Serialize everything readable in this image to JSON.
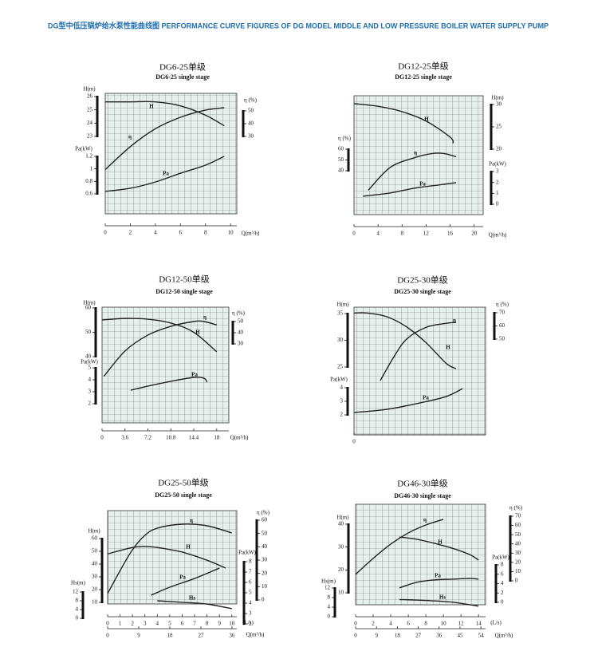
{
  "header": {
    "title": "DG型中低压锅炉给水泵性能曲线图  PERFORMANCE CURVE FIGURES OF DG MODEL MIDDLE AND LOW PRESSURE BOILER WATER SUPPLY PUMP"
  },
  "chart_data": [
    {
      "type": "line",
      "title": "DG6-25单级",
      "subtitle": "DG6-25 single stage",
      "color": "#222222",
      "xlabel": "Q(m³/h)",
      "xlim": [
        0,
        10.5
      ],
      "xticks": [
        0,
        2,
        4,
        6,
        8,
        10
      ],
      "axes": [
        {
          "label": "H(m)",
          "lim": [
            23,
            26
          ],
          "ticks": [
            26,
            25,
            24,
            23
          ],
          "name": "H",
          "x": [
            0,
            2,
            4,
            6,
            8,
            9.5
          ],
          "values": [
            25.6,
            25.6,
            25.6,
            25.3,
            24.6,
            23.8
          ]
        },
        {
          "label": "Pa(kW)",
          "lim": [
            0.6,
            1.2
          ],
          "ticks": [
            1.2,
            1,
            0.8,
            0.6
          ],
          "name": "Pa",
          "x": [
            0,
            2,
            4,
            6,
            8,
            9.5
          ],
          "values": [
            0.64,
            0.69,
            0.79,
            0.93,
            1.06,
            1.2
          ]
        },
        {
          "label": "η (%)",
          "lim": [
            30,
            50
          ],
          "ticks": [
            50,
            40,
            30
          ],
          "name": "η",
          "x": [
            0,
            2,
            4,
            6,
            8,
            9.5
          ],
          "values": [
            4,
            22,
            36,
            45,
            50.6,
            52.5
          ]
        }
      ]
    },
    {
      "type": "line",
      "title": "DG12-25单级",
      "subtitle": "DG12-25 single stage",
      "color": "#222222",
      "xlabel": "Q(m³/h)",
      "xlim": [
        0,
        21.5
      ],
      "xticks": [
        0,
        4,
        8,
        12,
        16,
        20
      ],
      "axes": [
        {
          "label": "H(m)",
          "lim": [
            20,
            30
          ],
          "ticks": [
            30,
            25,
            20
          ],
          "name": "H",
          "x": [
            0,
            4,
            8,
            12,
            16,
            16.5
          ],
          "values": [
            30.2,
            29.6,
            28.4,
            26.3,
            22.7,
            21.3
          ]
        },
        {
          "label": "Pa(kW)",
          "lim": [
            0,
            3
          ],
          "ticks": [
            3,
            2,
            1,
            0
          ],
          "name": "Pa",
          "x": [
            1.5,
            6,
            10,
            14,
            17
          ],
          "values": [
            0.74,
            1.03,
            1.47,
            1.76,
            1.98
          ]
        },
        {
          "label": "η (%)",
          "lim": [
            40,
            60
          ],
          "ticks": [
            60,
            50,
            40
          ],
          "name": "η",
          "x": [
            2.4,
            6,
            10,
            13,
            15,
            17
          ],
          "values": [
            22,
            43,
            52,
            56,
            56,
            53
          ]
        }
      ]
    },
    {
      "type": "line",
      "title": "DG12-50单级",
      "subtitle": "DG12-50 single stage",
      "color": "#222222",
      "xlabel": "Q(m³/h)",
      "xlim": [
        0,
        19.9
      ],
      "xticks": [
        0,
        3.6,
        7.2,
        10.8,
        14.4,
        18
      ],
      "axes": [
        {
          "label": "H(m)",
          "lim": [
            40,
            60
          ],
          "ticks": [
            60,
            50,
            40
          ],
          "name": "H",
          "x": [
            0,
            3.6,
            7.2,
            10.8,
            14.4,
            18
          ],
          "values": [
            55.1,
            55.7,
            55.4,
            53.8,
            50,
            42
          ]
        },
        {
          "label": "Pa(kW)",
          "lim": [
            2,
            5
          ],
          "ticks": [
            5,
            4,
            3,
            2
          ],
          "name": "Pa",
          "x": [
            4.5,
            7.2,
            10.8,
            14.4,
            16,
            16.5
          ],
          "values": [
            3.13,
            3.47,
            3.87,
            4.2,
            4.13,
            3.8
          ]
        },
        {
          "label": "η (%)",
          "lim": [
            30,
            50
          ],
          "ticks": [
            50,
            40,
            30
          ],
          "name": "η",
          "x": [
            0.3,
            3.6,
            7.2,
            10.8,
            14.4,
            16,
            18
          ],
          "values": [
            1,
            23.6,
            37.9,
            45.7,
            50,
            50,
            47
          ]
        }
      ]
    },
    {
      "type": "line",
      "title": "DG25-30单级",
      "subtitle": "DG25-30 single stage",
      "color": "#222222",
      "xlim": [
        0,
        40
      ],
      "xticks": [
        0
      ],
      "axes": [
        {
          "label": "H(m)",
          "lim": [
            25,
            35
          ],
          "ticks": [
            35,
            30,
            25
          ],
          "name": "H",
          "x": [
            0,
            4,
            10,
            16,
            22,
            28,
            31
          ],
          "values": [
            35.1,
            35.1,
            34.4,
            32.5,
            29.5,
            25.7,
            24.7
          ]
        },
        {
          "label": "Pa(kW)",
          "lim": [
            2,
            4
          ],
          "ticks": [
            4,
            3,
            2
          ],
          "name": "Pa",
          "x": [
            0,
            10,
            20,
            28,
            33
          ],
          "values": [
            2.18,
            2.41,
            2.88,
            3.35,
            3.94
          ]
        },
        {
          "label": "η (%)",
          "lim": [
            50,
            70
          ],
          "ticks": [
            70,
            60,
            50
          ],
          "name": "η",
          "x": [
            8,
            12,
            16,
            22,
            28,
            31
          ],
          "values": [
            18.5,
            36,
            50,
            59,
            62,
            62.7
          ]
        }
      ]
    },
    {
      "type": "line",
      "title": "DG25-50单级",
      "subtitle": "DG25-50 single stage",
      "color": "#222222",
      "xlabel": "(L/s)",
      "xlim": [
        0,
        10.4
      ],
      "xticks": [
        0,
        1,
        2,
        3,
        4,
        5,
        6,
        7,
        8,
        9,
        10
      ],
      "x2label": "Q(m³/h)",
      "x2lim": [
        0,
        37.4
      ],
      "x2ticks": [
        0,
        9,
        18,
        27,
        36
      ],
      "axes": [
        {
          "label": "H(m)",
          "lim": [
            10,
            60
          ],
          "ticks": [
            60,
            50,
            40,
            30,
            20,
            10
          ],
          "name": "H",
          "x": [
            0,
            2,
            3,
            4,
            6,
            8,
            9.5
          ],
          "values": [
            48,
            53,
            53.8,
            53,
            49.4,
            43,
            36.9
          ]
        },
        {
          "label": "Hs(m)",
          "lim": [
            0,
            12
          ],
          "ticks": [
            12,
            8,
            4,
            0
          ],
          "name": "Hs",
          "x": [
            4,
            6,
            8,
            10
          ],
          "values": [
            8,
            7.3,
            6.5,
            4.4
          ]
        },
        {
          "label": "η (%)",
          "lim": [
            0,
            60
          ],
          "ticks": [
            60,
            50,
            40,
            30,
            20,
            10,
            0
          ],
          "name": "η",
          "x": [
            0,
            1,
            2,
            3,
            4,
            6,
            8,
            10
          ],
          "values": [
            4.9,
            22,
            37.8,
            48.6,
            54,
            57,
            55.8,
            50.4
          ]
        },
        {
          "label": "Pa(kW)",
          "lim": [
            2,
            8
          ],
          "ticks": [
            8,
            7,
            6,
            5,
            4,
            3,
            2
          ],
          "name": "Pa",
          "x": [
            3.5,
            5,
            7,
            9
          ],
          "values": [
            4.77,
            5.54,
            6.38,
            7.38
          ]
        }
      ]
    },
    {
      "type": "line",
      "title": "DG46-30单级",
      "subtitle": "DG46-30 single stage",
      "color": "#222222",
      "xlabel": "(L/s)",
      "xlim": [
        0,
        14.8
      ],
      "xticks": [
        0,
        2,
        4,
        6,
        8,
        10,
        12,
        14
      ],
      "x2label": "Q(m³/h)",
      "x2lim": [
        0,
        56
      ],
      "x2ticks": [
        0,
        9,
        18,
        27,
        36,
        45,
        54
      ],
      "axes": [
        {
          "label": "H(m)",
          "lim": [
            10,
            40
          ],
          "ticks": [
            40,
            30,
            20,
            10
          ],
          "name": "H",
          "x": [
            5,
            7,
            9,
            11,
            13,
            14
          ],
          "values": [
            34.4,
            33.4,
            31.6,
            29.5,
            26.7,
            24.3
          ]
        },
        {
          "label": "Hs(m)",
          "lim": [
            0,
            12
          ],
          "ticks": [
            12,
            8,
            4,
            0
          ],
          "name": "Hs",
          "x": [
            5,
            8,
            11,
            14
          ],
          "values": [
            7.2,
            6.8,
            6.1,
            4.4
          ]
        },
        {
          "label": "η (%)",
          "lim": [
            0,
            70
          ],
          "ticks": [
            70,
            60,
            50,
            40,
            30,
            20,
            10,
            0
          ],
          "name": "η",
          "x": [
            0,
            2,
            4,
            6,
            8,
            10
          ],
          "values": [
            7,
            24.3,
            39.8,
            51.9,
            60.5,
            66.6
          ]
        },
        {
          "label": "Pa(kW)",
          "lim": [
            0,
            8
          ],
          "ticks": [
            8,
            6,
            4,
            2,
            0
          ],
          "name": "Pa",
          "x": [
            5,
            7,
            9,
            11,
            13,
            14
          ],
          "values": [
            3.1,
            4.3,
            4.8,
            4.95,
            5.1,
            4.95
          ]
        }
      ]
    }
  ]
}
